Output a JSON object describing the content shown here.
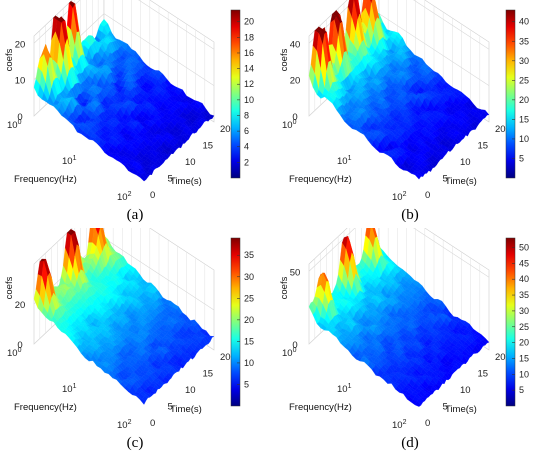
{
  "chart_data": [
    {
      "panel": "a",
      "caption": "(a)",
      "type": "surface",
      "xlabel": "Frequency(Hz)",
      "ylabel": "Time(s)",
      "zlabel": "coefs",
      "freq_ticks": [
        "10^0",
        "10^1",
        "10^2"
      ],
      "time_ticks": [
        "0",
        "5",
        "10",
        "15",
        "20"
      ],
      "z_ticks": [
        "0",
        "10",
        "20"
      ],
      "zlim": [
        0,
        22
      ],
      "colorbar_ticks": [
        "2",
        "4",
        "6",
        "8",
        "10",
        "12",
        "14",
        "16",
        "18",
        "20"
      ],
      "clim": [
        0,
        21.5
      ],
      "peak_value": 21.5,
      "grid": true,
      "colormap": "jet"
    },
    {
      "panel": "b",
      "caption": "(b)",
      "type": "surface",
      "xlabel": "Frequency(Hz)",
      "ylabel": "Time(s)",
      "zlabel": "coefs",
      "freq_ticks": [
        "10^0",
        "10^1",
        "10^2"
      ],
      "time_ticks": [
        "0",
        "5",
        "10",
        "15",
        "20"
      ],
      "z_ticks": [
        "0",
        "20",
        "40"
      ],
      "zlim": [
        0,
        44
      ],
      "colorbar_ticks": [
        "5",
        "10",
        "15",
        "20",
        "25",
        "30",
        "35",
        "40"
      ],
      "clim": [
        0,
        43
      ],
      "peak_value": 43,
      "grid": true,
      "colormap": "jet"
    },
    {
      "panel": "c",
      "caption": "(c)",
      "type": "surface",
      "xlabel": "Frequency(Hz)",
      "ylabel": "Time(s)",
      "zlabel": "coefs",
      "freq_ticks": [
        "10^0",
        "10^1",
        "10^2"
      ],
      "time_ticks": [
        "0",
        "5",
        "10",
        "15",
        "20"
      ],
      "z_ticks": [
        "0",
        "20"
      ],
      "zlim": [
        0,
        40
      ],
      "colorbar_ticks": [
        "5",
        "10",
        "15",
        "20",
        "25",
        "30",
        "35"
      ],
      "clim": [
        0,
        39
      ],
      "peak_value": 39,
      "grid": true,
      "colormap": "jet"
    },
    {
      "panel": "d",
      "caption": "(d)",
      "type": "surface",
      "xlabel": "Frequency(Hz)",
      "ylabel": "Time(s)",
      "zlabel": "coefs",
      "freq_ticks": [
        "10^0",
        "10^1",
        "10^2"
      ],
      "time_ticks": [
        "0",
        "5",
        "10",
        "15",
        "20"
      ],
      "z_ticks": [
        "0",
        "50"
      ],
      "zlim": [
        0,
        55
      ],
      "colorbar_ticks": [
        "5",
        "10",
        "15",
        "20",
        "25",
        "30",
        "35",
        "40",
        "45",
        "50"
      ],
      "clim": [
        0,
        53
      ],
      "peak_value": 53,
      "grid": true,
      "colormap": "jet"
    }
  ]
}
